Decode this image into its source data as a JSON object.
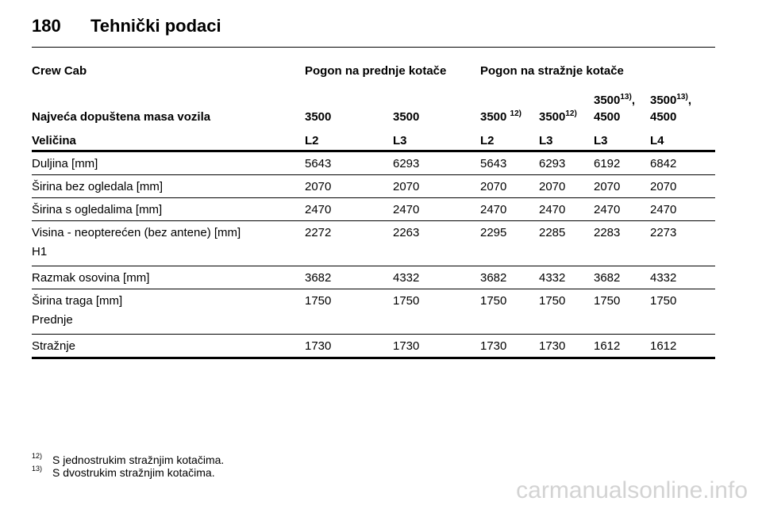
{
  "header": {
    "page_number": "180",
    "title": "Tehnički podaci"
  },
  "table": {
    "group_row": {
      "label": "Crew Cab",
      "front_drive": "Pogon na prednje kotače",
      "rear_drive": "Pogon na stražnje kotače"
    },
    "mass_row": {
      "label": "Najveća dopuštena masa vozila",
      "values": [
        {
          "text": "3500",
          "note": ""
        },
        {
          "text": "3500",
          "note": ""
        },
        {
          "text": "3500 ",
          "note": "12)"
        },
        {
          "text": "3500",
          "note": "12)"
        },
        {
          "text": "3500",
          "note": "13)",
          "suffix": ",",
          "text2": "4500"
        },
        {
          "text": "3500",
          "note": "13)",
          "suffix": ",",
          "text2": "4500"
        }
      ]
    },
    "size_row": {
      "label": "Veličina",
      "values": [
        "L2",
        "L3",
        "L2",
        "L3",
        "L3",
        "L4"
      ]
    },
    "rows": [
      {
        "label": "Duljina [mm]",
        "label2": "",
        "values": [
          "5643",
          "6293",
          "5643",
          "6293",
          "6192",
          "6842"
        ]
      },
      {
        "label": "Širina bez ogledala [mm]",
        "label2": "",
        "values": [
          "2070",
          "2070",
          "2070",
          "2070",
          "2070",
          "2070"
        ]
      },
      {
        "label": "Širina s ogledalima [mm]",
        "label2": "",
        "values": [
          "2470",
          "2470",
          "2470",
          "2470",
          "2470",
          "2470"
        ]
      },
      {
        "label": "Visina - neopterećen (bez antene) [mm]",
        "label2": "H1",
        "values": [
          "2272",
          "2263",
          "2295",
          "2285",
          "2283",
          "2273"
        ]
      },
      {
        "label": "Razmak osovina [mm]",
        "label2": "",
        "values": [
          "3682",
          "4332",
          "3682",
          "4332",
          "3682",
          "4332"
        ]
      },
      {
        "label": "Širina traga [mm]",
        "label2": "Prednje",
        "values": [
          "1750",
          "1750",
          "1750",
          "1750",
          "1750",
          "1750"
        ]
      },
      {
        "label": "Stražnje",
        "label2": "",
        "values": [
          "1730",
          "1730",
          "1730",
          "1730",
          "1612",
          "1612"
        ]
      }
    ]
  },
  "footnotes": [
    {
      "mark": "12)",
      "text": "S jednostrukim stražnjim kotačima."
    },
    {
      "mark": "13)",
      "text": "S dvostrukim stražnjim kotačima."
    }
  ],
  "watermark": "carmanualsonline.info"
}
